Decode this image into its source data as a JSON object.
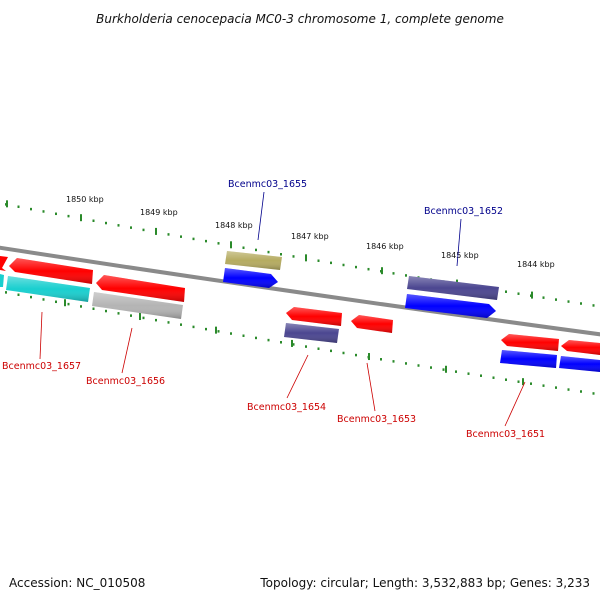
{
  "title": "Burkholderia cenocepacia MC0-3 chromosome 1, complete genome",
  "accession_text": "Accession: NC_010508",
  "topology_text": "Topology: circular; Length: 3,532,883 bp; Genes: 3,233",
  "ruler_labels": [
    "1850 kbp",
    "1849 kbp",
    "1848 kbp",
    "1847 kbp",
    "1846 kbp",
    "1845 kbp",
    "1844 kbp"
  ],
  "gene_labels": [
    {
      "text": "Bcenmc03_1655",
      "color": "#00008b"
    },
    {
      "text": "Bcenmc03_1652",
      "color": "#00008b"
    },
    {
      "text": "Bcenmc03_1657",
      "color": "#cc0000"
    },
    {
      "text": "Bcenmc03_1656",
      "color": "#cc0000"
    },
    {
      "text": "Bcenmc03_1654",
      "color": "#cc0000"
    },
    {
      "text": "Bcenmc03_1653",
      "color": "#cc0000"
    },
    {
      "text": "Bcenmc03_1651",
      "color": "#cc0000"
    }
  ],
  "colors": {
    "backbone": "#8a8a8a",
    "tick": "#2a8a2a",
    "red": "#ff0000",
    "blue": "#0000ff",
    "slate": "#4b4690",
    "khaki": "#b5ab60",
    "cyan": "#19cfcf",
    "grey": "#b4b4b4"
  }
}
